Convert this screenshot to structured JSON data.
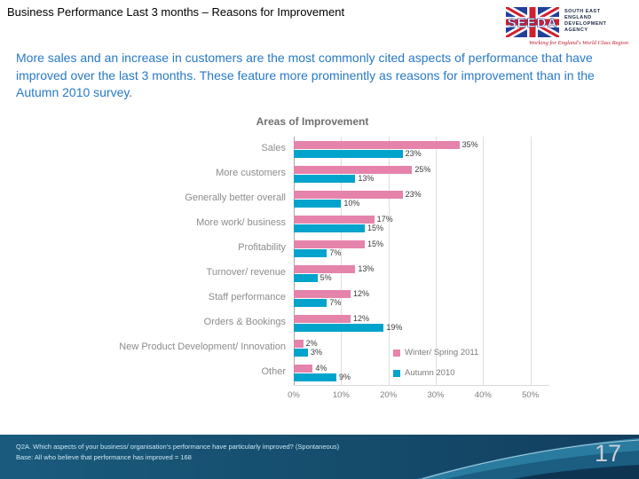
{
  "header": {
    "title": "Business Performance Last 3 months – Reasons for Improvement",
    "logo": {
      "name": "SEEDA",
      "org_lines": [
        "SOUTH EAST",
        "ENGLAND",
        "DEVELOPMENT",
        "AGENCY"
      ],
      "tagline": "Working for England's World Class Region"
    }
  },
  "intro": {
    "text": "More sales and an increase in customers are the most commonly cited aspects of performance that have improved over the last 3 months. These feature more prominently as reasons for improvement than in the Autumn 2010 survey."
  },
  "chart_data": {
    "type": "bar",
    "orientation": "horizontal",
    "title": "Areas of Improvement",
    "categories": [
      "Sales",
      "More customers",
      "Generally better overall",
      "More work/ business",
      "Profitability",
      "Turnover/ revenue",
      "Staff performance",
      "Orders & Bookings",
      "New Product Development/ Innovation",
      "Other"
    ],
    "series": [
      {
        "name": "Winter/ Spring 2011",
        "color": "#E583AB",
        "values": [
          35,
          25,
          23,
          17,
          15,
          13,
          12,
          12,
          2,
          4
        ]
      },
      {
        "name": "Autumn 2010",
        "color": "#00A3CC",
        "values": [
          23,
          13,
          10,
          15,
          7,
          5,
          7,
          19,
          3,
          9
        ]
      }
    ],
    "value_suffix": "%",
    "x_ticks": [
      "0%",
      "10%",
      "20%",
      "30%",
      "40%",
      "50%"
    ],
    "xlim": [
      0,
      54
    ],
    "grid": true,
    "legend_position": "inside-bottom-right"
  },
  "footer": {
    "line1": "Q2A. Which aspects of your business/ organisation's performance have particularly improved? (Spontaneous)",
    "line2": "Base: All who believe that performance has improved = 168",
    "page_number": "17"
  },
  "colors": {
    "accent_pink": "#E583AB",
    "accent_blue": "#00A3CC",
    "intro_blue": "#2779C7",
    "footer_bg": "#154C6C"
  }
}
